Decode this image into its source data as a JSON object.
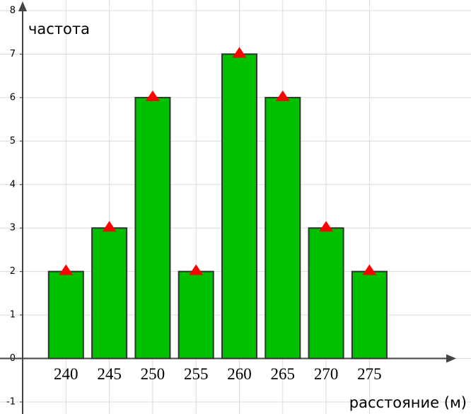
{
  "chart_data": {
    "type": "bar",
    "x_label": "расстояние (м)",
    "y_label": "частота",
    "x": [
      240,
      245,
      250,
      255,
      260,
      265,
      270,
      275
    ],
    "values": [
      2,
      3,
      6,
      2,
      7,
      6,
      3,
      2
    ],
    "color": "#00c000",
    "marker_color": "#ff0000",
    "xlim": [
      235,
      285
    ],
    "xticks": [
      240,
      245,
      250,
      255,
      260,
      265,
      270,
      275
    ],
    "ylim": [
      -1,
      8
    ],
    "yticks": [
      -1,
      0,
      1,
      2,
      3,
      4,
      5,
      6,
      7,
      8
    ],
    "grid": true
  }
}
